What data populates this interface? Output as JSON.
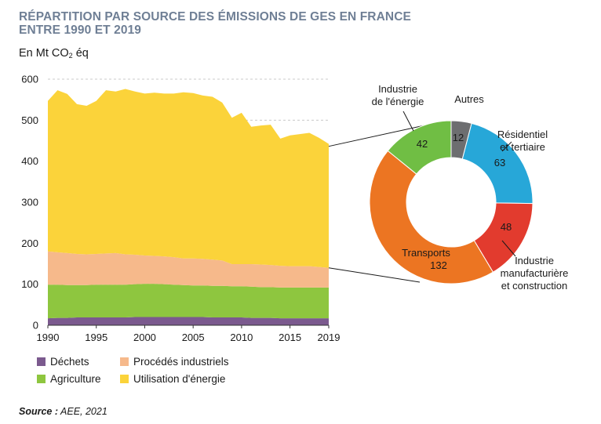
{
  "title_line1": "RÉPARTITION PAR SOURCE DES ÉMISSIONS DE GES EN FRANCE",
  "title_line2": "ENTRE 1990 ET 2019",
  "unit": {
    "prefix": "En Mt CO",
    "sub": "2",
    "suffix": " éq"
  },
  "source": {
    "label": "Source :",
    "text": " AEE, 2021"
  },
  "colors": {
    "dechets": "#7b5a8e",
    "procedes": "#f6b98b",
    "agriculture": "#8ec63f",
    "energie": "#fbd33a",
    "autres": "#6d6e70",
    "residentiel": "#27a7d8",
    "industrie_manuf": "#e23b2e",
    "transports": "#ec7522",
    "industrie_energie": "#70be44"
  },
  "chart_data": [
    {
      "type": "area",
      "stacked": true,
      "xlim": [
        1990,
        2019
      ],
      "ylim": [
        0,
        600
      ],
      "x_ticks": [
        1990,
        1995,
        2000,
        2005,
        2010,
        2015,
        2019
      ],
      "y_ticks": [
        0,
        100,
        200,
        300,
        400,
        500,
        600
      ],
      "grid": "y-dashed",
      "legend_position": "bottom-left",
      "x": [
        1990,
        1991,
        1992,
        1993,
        1994,
        1995,
        1996,
        1997,
        1998,
        1999,
        2000,
        2001,
        2002,
        2003,
        2004,
        2005,
        2006,
        2007,
        2008,
        2009,
        2010,
        2011,
        2012,
        2013,
        2014,
        2015,
        2016,
        2017,
        2018,
        2019
      ],
      "series": [
        {
          "name": "Déchets",
          "color_key": "dechets",
          "values": [
            17,
            18,
            18,
            19,
            19,
            19,
            19,
            19,
            19,
            20,
            20,
            20,
            20,
            20,
            20,
            20,
            20,
            19,
            19,
            19,
            19,
            18,
            18,
            18,
            17,
            17,
            17,
            17,
            17,
            17
          ]
        },
        {
          "name": "Agriculture",
          "color_key": "agriculture",
          "values": [
            82,
            81,
            80,
            79,
            79,
            80,
            80,
            80,
            80,
            80,
            81,
            81,
            80,
            79,
            78,
            77,
            77,
            77,
            77,
            76,
            76,
            76,
            75,
            75,
            75,
            75,
            75,
            75,
            75,
            75
          ]
        },
        {
          "name": "Procédés industriels",
          "color_key": "procedes",
          "values": [
            81,
            79,
            78,
            76,
            75,
            75,
            76,
            77,
            74,
            72,
            69,
            68,
            68,
            67,
            65,
            66,
            65,
            64,
            62,
            54,
            54,
            55,
            55,
            54,
            53,
            52,
            52,
            52,
            50,
            48
          ]
        },
        {
          "name": "Utilisation d'énergie",
          "color_key": "energie",
          "values": [
            367,
            395,
            388,
            365,
            362,
            373,
            398,
            394,
            403,
            398,
            395,
            398,
            397,
            399,
            405,
            403,
            398,
            397,
            385,
            357,
            369,
            335,
            339,
            342,
            310,
            319,
            322,
            325,
            315,
            302
          ]
        }
      ]
    },
    {
      "type": "pie",
      "donut": true,
      "year": 2019,
      "slices": [
        {
          "label_lines": [
            "Autres"
          ],
          "value": 12,
          "color_key": "autres"
        },
        {
          "label_lines": [
            "Résidentiel",
            "et tertiaire"
          ],
          "value": 63,
          "color_key": "residentiel"
        },
        {
          "label_lines": [
            "Industrie",
            "manufacturière",
            "et construction"
          ],
          "value": 48,
          "color_key": "industrie_manuf"
        },
        {
          "label_lines": [
            "Transports"
          ],
          "value": 132,
          "color_key": "transports"
        },
        {
          "label_lines": [
            "Industrie",
            "de l'énergie"
          ],
          "value": 42,
          "color_key": "industrie_energie"
        }
      ]
    }
  ]
}
